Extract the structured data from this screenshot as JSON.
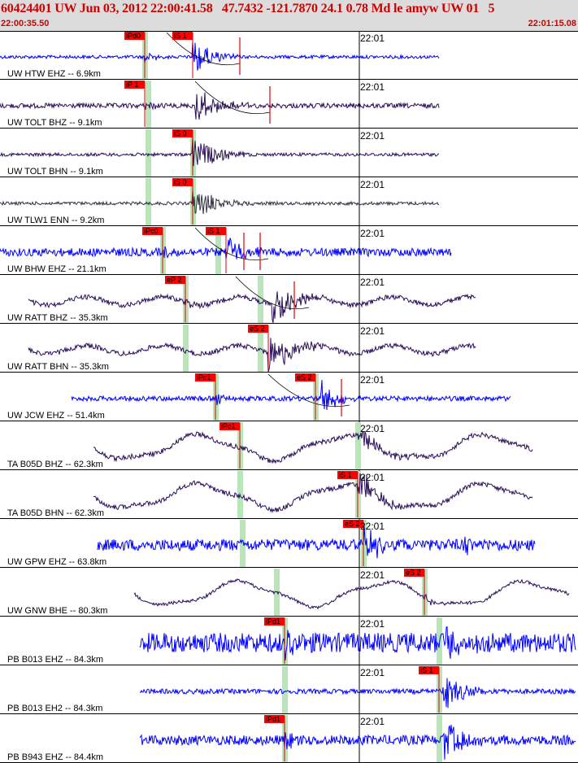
{
  "header": {
    "title": "60424401 UW Jun 03, 2012 22:00:41.58   47.7432 -121.7870 24.1 0.78 Md le amyw UW 01   5",
    "start_time": "22:00:35.50",
    "end_time": "22:01:15.08"
  },
  "colors": {
    "header_bg": "#dcdcdc",
    "title_text": "#d00000",
    "trace_velocity": "#0000ff",
    "trace_strong": "#2a0f5a",
    "trace_dark": "#333344",
    "pick_box": "#ff0000",
    "pick_band": "#b9e6b9",
    "theoretical_curve": "#000000"
  },
  "traces": [
    {
      "label": "UW HTW EHZ -- 6.9km",
      "minute": "22:01",
      "color": "blue",
      "start": 0,
      "end": 540,
      "amp": 2,
      "kind": "hf",
      "picks": [
        {
          "text": "iPd0",
          "x": 178
        },
        {
          "text": "iS 1",
          "x": 237
        }
      ],
      "bands": [
        178
      ],
      "spikes": [
        295
      ],
      "events": [
        {
          "x": 178,
          "amp": 7,
          "dur": 40
        },
        {
          "x": 237,
          "amp": 25,
          "dur": 60
        }
      ],
      "curve": [
        205,
        295
      ]
    },
    {
      "label": "UW TOLT BHZ -- 9.1km",
      "minute": "22:01",
      "color": "strong",
      "start": 0,
      "end": 540,
      "amp": 3,
      "kind": "hf",
      "picks": [
        {
          "text": "iP 1",
          "x": 178
        }
      ],
      "bands": [
        182
      ],
      "spikes": [
        332
      ],
      "events": [
        {
          "x": 178,
          "amp": 5,
          "dur": 40
        },
        {
          "x": 240,
          "amp": 24,
          "dur": 75
        }
      ],
      "curve": [
        240,
        332
      ]
    },
    {
      "label": "UW TOLT BHN -- 9.1km",
      "minute": "22:01",
      "color": "strong",
      "start": 0,
      "end": 540,
      "amp": 2,
      "kind": "hf",
      "picks": [
        {
          "text": "iS 0",
          "x": 237
        }
      ],
      "bands": [
        182,
        237
      ],
      "spikes": [],
      "events": [
        {
          "x": 237,
          "amp": 24,
          "dur": 75
        }
      ],
      "curve": null
    },
    {
      "label": "UW TLW1 ENN -- 9.2km",
      "minute": "22:01",
      "color": "dark",
      "start": 0,
      "end": 540,
      "amp": 2,
      "kind": "hf",
      "picks": [
        {
          "text": "iS 0",
          "x": 237
        }
      ],
      "bands": [
        182,
        237
      ],
      "spikes": [],
      "events": [
        {
          "x": 237,
          "amp": 22,
          "dur": 80
        }
      ],
      "curve": null
    },
    {
      "label": "UW BHW EHZ -- 21.1km",
      "minute": "22:01",
      "color": "blue",
      "start": 0,
      "end": 555,
      "amp": 5,
      "kind": "hf",
      "picks": [
        {
          "text": "iPc0",
          "x": 200
        },
        {
          "text": "iS 1",
          "x": 278
        }
      ],
      "bands": [
        200,
        268
      ],
      "spikes": [
        300,
        320
      ],
      "events": [
        {
          "x": 200,
          "amp": 10,
          "dur": 30
        },
        {
          "x": 278,
          "amp": 28,
          "dur": 50
        }
      ],
      "curve": [
        240,
        330
      ]
    },
    {
      "label": "UW RATT BHZ -- 35.3km",
      "minute": "22:01",
      "color": "strong",
      "start": 35,
      "end": 585,
      "amp": 3,
      "kind": "lp",
      "picks": [
        {
          "text": "eP 2",
          "x": 228
        }
      ],
      "bands": [
        228,
        320
      ],
      "spikes": [
        362
      ],
      "events": [
        {
          "x": 228,
          "amp": 5,
          "dur": 30
        },
        {
          "x": 335,
          "amp": 24,
          "dur": 80
        }
      ],
      "curve": [
        290,
        380
      ]
    },
    {
      "label": "UW RATT BHN -- 35.3km",
      "minute": "22:01",
      "color": "strong",
      "start": 35,
      "end": 585,
      "amp": 3,
      "kind": "lp",
      "picks": [
        {
          "text": "eS 2",
          "x": 330
        }
      ],
      "bands": [
        228,
        320
      ],
      "spikes": [],
      "events": [
        {
          "x": 330,
          "amp": 24,
          "dur": 90
        }
      ],
      "curve": null
    },
    {
      "label": "UW JCW EHZ -- 51.4km",
      "minute": "22:01",
      "color": "blue",
      "start": 88,
      "end": 628,
      "amp": 3,
      "kind": "hf",
      "picks": [
        {
          "text": "iPc1",
          "x": 265
        },
        {
          "text": "eS 2",
          "x": 388
        }
      ],
      "bands": [
        265,
        388
      ],
      "spikes": [
        420
      ],
      "events": [
        {
          "x": 265,
          "amp": 8,
          "dur": 30
        },
        {
          "x": 395,
          "amp": 26,
          "dur": 45
        }
      ],
      "curve": [
        330,
        430
      ]
    },
    {
      "label": "TA B05D BHZ -- 62.3km",
      "minute": "22:01",
      "color": "strong",
      "start": 115,
      "end": 655,
      "amp": 3,
      "kind": "swell",
      "picks": [
        {
          "text": "iPc1",
          "x": 295
        }
      ],
      "bands": [
        295,
        440
      ],
      "spikes": [],
      "events": [
        {
          "x": 440,
          "amp": 15,
          "dur": 80
        }
      ],
      "curve": null
    },
    {
      "label": "TA B05D BHN -- 62.3km",
      "minute": "22:01",
      "color": "strong",
      "start": 115,
      "end": 655,
      "amp": 3,
      "kind": "swell",
      "picks": [
        {
          "text": "iS 1",
          "x": 440
        }
      ],
      "bands": [
        295,
        440
      ],
      "spikes": [],
      "events": [
        {
          "x": 440,
          "amp": 22,
          "dur": 70
        }
      ],
      "curve": null
    },
    {
      "label": "UW GPW EHZ -- 63.8km",
      "minute": "22:01",
      "color": "blue",
      "start": 120,
      "end": 658,
      "amp": 7,
      "kind": "hf",
      "picks": [
        {
          "text": "eS 2",
          "x": 447
        }
      ],
      "bands": [
        298,
        447
      ],
      "spikes": [],
      "events": [
        {
          "x": 447,
          "amp": 24,
          "dur": 60
        },
        {
          "x": 570,
          "amp": 14,
          "dur": 30
        }
      ],
      "curve": null
    },
    {
      "label": "UW GNW BHE -- 80.3km",
      "minute": "22:01",
      "color": "strong",
      "start": 165,
      "end": 700,
      "amp": 2,
      "kind": "swell",
      "picks": [
        {
          "text": "eS 2",
          "x": 522
        }
      ],
      "bands": [
        340,
        522
      ],
      "spikes": [],
      "events": [
        {
          "x": 522,
          "amp": 8,
          "dur": 40
        }
      ],
      "curve": null
    },
    {
      "label": "PB B013 EHZ -- 84.3km",
      "minute": "22:01",
      "color": "blue",
      "start": 172,
      "end": 708,
      "amp": 12,
      "kind": "hf",
      "picks": [
        {
          "text": "iPd1",
          "x": 350
        }
      ],
      "bands": [
        350,
        540
      ],
      "spikes": [],
      "events": [
        {
          "x": 350,
          "amp": 16,
          "dur": 40
        },
        {
          "x": 545,
          "amp": 26,
          "dur": 60
        }
      ],
      "curve": null
    },
    {
      "label": "PB B013 EH2 -- 84.3km",
      "minute": "22:01",
      "color": "blue",
      "start": 172,
      "end": 708,
      "amp": 3,
      "kind": "hf",
      "picks": [
        {
          "text": "iS 1",
          "x": 540
        }
      ],
      "bands": [
        350,
        540
      ],
      "spikes": [],
      "events": [
        {
          "x": 545,
          "amp": 24,
          "dur": 70
        }
      ],
      "curve": null
    },
    {
      "label": "PB B943 EHZ -- 84.4km",
      "minute": "22:01",
      "color": "blue",
      "start": 172,
      "end": 708,
      "amp": 6,
      "kind": "hf",
      "picks": [
        {
          "text": "iPd1",
          "x": 350
        }
      ],
      "bands": [
        350,
        540
      ],
      "spikes": [],
      "events": [
        {
          "x": 350,
          "amp": 12,
          "dur": 30
        },
        {
          "x": 545,
          "amp": 28,
          "dur": 60
        }
      ],
      "curve": null
    }
  ]
}
